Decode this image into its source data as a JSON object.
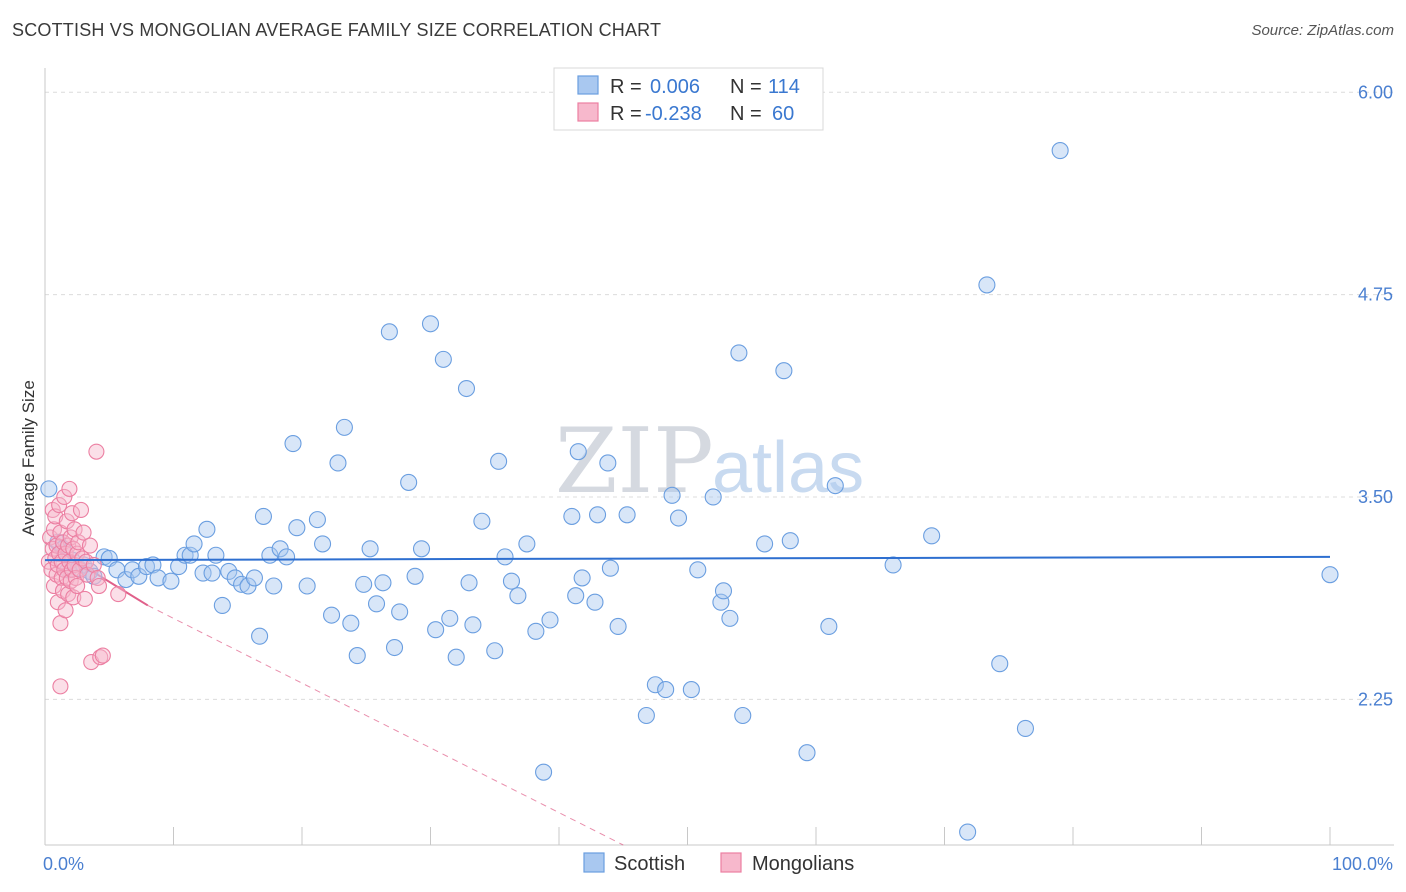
{
  "header": {
    "title": "SCOTTISH VS MONGOLIAN AVERAGE FAMILY SIZE CORRELATION CHART",
    "source": "Source: ZipAtlas.com"
  },
  "watermark": {
    "part1": "ZIP",
    "part2": "atlas"
  },
  "legend_box": {
    "rows": [
      {
        "r_label": "R = ",
        "r_value": "0.006",
        "n_label": "N = ",
        "n_value": "114",
        "color": "#7aaee8"
      },
      {
        "r_label": "R = ",
        "r_value": "-0.238",
        "n_label": "N = ",
        "n_value": "60",
        "color": "#f08fb0"
      }
    ]
  },
  "colors": {
    "scottish_fill": "#a9c8f0",
    "scottish_stroke": "#6a9ee0",
    "scottish_line": "#2e6fd0",
    "mongolian_fill": "#f7b8cc",
    "mongolian_stroke": "#ec7fa2",
    "mongolian_line": "#e0608a",
    "tick_text": "#4a7fd0",
    "grid": "#dcdcdc"
  },
  "chart_data": {
    "type": "scatter",
    "title": "SCOTTISH VS MONGOLIAN AVERAGE FAMILY SIZE CORRELATION CHART",
    "xlabel": "",
    "ylabel": "Average Family Size",
    "xlim": [
      0,
      100
    ],
    "ylim": [
      1.35,
      6.15
    ],
    "x_tick_labels": [
      "0.0%",
      "100.0%"
    ],
    "y_ticks": [
      2.25,
      3.5,
      4.75,
      6.0
    ],
    "y_tick_labels": [
      "2.25",
      "3.50",
      "4.75",
      "6.00"
    ],
    "grid": true,
    "legend_position": "bottom",
    "series": [
      {
        "name": "Scottish",
        "r": 0.006,
        "n": 114,
        "trend": {
          "x0": 0,
          "y0": 3.11,
          "x1": 100,
          "y1": 3.13
        },
        "points": [
          [
            0.3,
            3.55
          ],
          [
            1.0,
            3.22
          ],
          [
            1.4,
            3.18
          ],
          [
            1.8,
            3.05
          ],
          [
            2.1,
            3.11
          ],
          [
            2.6,
            3.06
          ],
          [
            3.0,
            3.08
          ],
          [
            3.5,
            3.04
          ],
          [
            3.8,
            3.01
          ],
          [
            4.6,
            3.13
          ],
          [
            5.0,
            3.12
          ],
          [
            5.6,
            3.05
          ],
          [
            6.3,
            2.99
          ],
          [
            6.8,
            3.05
          ],
          [
            7.3,
            3.01
          ],
          [
            7.9,
            3.07
          ],
          [
            8.4,
            3.08
          ],
          [
            8.8,
            3.0
          ],
          [
            9.8,
            2.98
          ],
          [
            10.4,
            3.07
          ],
          [
            10.9,
            3.14
          ],
          [
            11.3,
            3.14
          ],
          [
            11.6,
            3.21
          ],
          [
            12.3,
            3.03
          ],
          [
            12.6,
            3.3
          ],
          [
            13.0,
            3.03
          ],
          [
            13.3,
            3.14
          ],
          [
            13.8,
            2.83
          ],
          [
            14.3,
            3.04
          ],
          [
            14.8,
            3.0
          ],
          [
            15.3,
            2.96
          ],
          [
            15.8,
            2.95
          ],
          [
            16.3,
            3.0
          ],
          [
            16.7,
            2.64
          ],
          [
            17.0,
            3.38
          ],
          [
            17.5,
            3.14
          ],
          [
            17.8,
            2.95
          ],
          [
            18.3,
            3.18
          ],
          [
            18.8,
            3.13
          ],
          [
            19.3,
            3.83
          ],
          [
            19.6,
            3.31
          ],
          [
            20.4,
            2.95
          ],
          [
            21.2,
            3.36
          ],
          [
            21.6,
            3.21
          ],
          [
            22.3,
            2.77
          ],
          [
            22.8,
            3.71
          ],
          [
            23.3,
            3.93
          ],
          [
            23.8,
            2.72
          ],
          [
            24.3,
            2.52
          ],
          [
            24.8,
            2.96
          ],
          [
            25.3,
            3.18
          ],
          [
            25.8,
            2.84
          ],
          [
            26.3,
            2.97
          ],
          [
            26.8,
            4.52
          ],
          [
            27.2,
            2.57
          ],
          [
            27.6,
            2.79
          ],
          [
            28.3,
            3.59
          ],
          [
            28.8,
            3.01
          ],
          [
            29.3,
            3.18
          ],
          [
            30.0,
            4.57
          ],
          [
            30.4,
            2.68
          ],
          [
            31.0,
            4.35
          ],
          [
            31.5,
            2.75
          ],
          [
            32.0,
            2.51
          ],
          [
            32.8,
            4.17
          ],
          [
            33.0,
            2.97
          ],
          [
            33.3,
            2.71
          ],
          [
            34.0,
            3.35
          ],
          [
            35.0,
            2.55
          ],
          [
            35.3,
            3.72
          ],
          [
            35.8,
            3.13
          ],
          [
            36.3,
            2.98
          ],
          [
            36.8,
            2.89
          ],
          [
            37.5,
            3.21
          ],
          [
            38.2,
            2.67
          ],
          [
            38.8,
            1.8
          ],
          [
            39.3,
            2.74
          ],
          [
            41.0,
            3.38
          ],
          [
            41.5,
            3.78
          ],
          [
            41.8,
            3.0
          ],
          [
            41.3,
            2.89
          ],
          [
            42.8,
            2.85
          ],
          [
            43.0,
            3.39
          ],
          [
            43.8,
            3.71
          ],
          [
            44.0,
            3.06
          ],
          [
            44.6,
            2.7
          ],
          [
            45.3,
            3.39
          ],
          [
            46.8,
            2.15
          ],
          [
            47.5,
            2.34
          ],
          [
            48.3,
            2.31
          ],
          [
            48.8,
            3.51
          ],
          [
            49.3,
            3.37
          ],
          [
            50.3,
            2.31
          ],
          [
            50.8,
            3.05
          ],
          [
            52.0,
            3.5
          ],
          [
            52.6,
            2.85
          ],
          [
            52.8,
            2.92
          ],
          [
            53.3,
            2.75
          ],
          [
            54.0,
            4.39
          ],
          [
            54.3,
            2.15
          ],
          [
            56.0,
            3.21
          ],
          [
            57.5,
            4.28
          ],
          [
            58.0,
            3.23
          ],
          [
            59.3,
            1.92
          ],
          [
            61.0,
            2.7
          ],
          [
            61.5,
            3.57
          ],
          [
            66.0,
            3.08
          ],
          [
            69.0,
            3.26
          ],
          [
            71.8,
            1.43
          ],
          [
            73.3,
            4.81
          ],
          [
            74.3,
            2.47
          ],
          [
            76.3,
            2.07
          ],
          [
            79.0,
            5.64
          ],
          [
            100.0,
            3.02
          ]
        ]
      },
      {
        "name": "Mongolians",
        "r": -0.238,
        "n": 60,
        "trend": {
          "x0": 0,
          "y0": 3.22,
          "x1": 8,
          "y1": 2.83,
          "dash_x1": 45,
          "dash_y1": 1.35
        },
        "points": [
          [
            0.3,
            3.1
          ],
          [
            0.4,
            3.25
          ],
          [
            0.5,
            3.05
          ],
          [
            0.6,
            3.42
          ],
          [
            0.6,
            3.18
          ],
          [
            0.7,
            2.95
          ],
          [
            0.7,
            3.3
          ],
          [
            0.8,
            3.12
          ],
          [
            0.8,
            3.38
          ],
          [
            0.9,
            3.02
          ],
          [
            0.9,
            3.2
          ],
          [
            1.0,
            3.08
          ],
          [
            1.0,
            2.85
          ],
          [
            1.1,
            3.15
          ],
          [
            1.1,
            3.45
          ],
          [
            1.2,
            2.72
          ],
          [
            1.2,
            3.28
          ],
          [
            1.3,
            3.0
          ],
          [
            1.3,
            3.1
          ],
          [
            1.4,
            2.92
          ],
          [
            1.4,
            3.22
          ],
          [
            1.5,
            3.05
          ],
          [
            1.5,
            3.5
          ],
          [
            1.6,
            2.8
          ],
          [
            1.6,
            3.15
          ],
          [
            1.7,
            3.35
          ],
          [
            1.7,
            3.0
          ],
          [
            1.8,
            2.9
          ],
          [
            1.8,
            3.2
          ],
          [
            1.9,
            3.1
          ],
          [
            1.9,
            3.55
          ],
          [
            2.0,
            2.98
          ],
          [
            2.0,
            3.25
          ],
          [
            2.1,
            3.05
          ],
          [
            2.1,
            3.4
          ],
          [
            2.2,
            3.18
          ],
          [
            2.2,
            2.88
          ],
          [
            2.3,
            3.08
          ],
          [
            2.3,
            3.3
          ],
          [
            2.4,
            3.0
          ],
          [
            2.5,
            3.15
          ],
          [
            2.5,
            2.95
          ],
          [
            2.6,
            3.22
          ],
          [
            2.7,
            3.05
          ],
          [
            2.8,
            3.42
          ],
          [
            2.9,
            3.12
          ],
          [
            3.0,
            3.28
          ],
          [
            3.1,
            2.87
          ],
          [
            3.2,
            3.1
          ],
          [
            3.3,
            3.02
          ],
          [
            3.5,
            3.2
          ],
          [
            3.6,
            2.48
          ],
          [
            3.8,
            3.08
          ],
          [
            4.0,
            3.78
          ],
          [
            4.1,
            3.0
          ],
          [
            4.2,
            2.95
          ],
          [
            4.3,
            2.51
          ],
          [
            4.5,
            2.52
          ],
          [
            5.7,
            2.9
          ],
          [
            1.2,
            2.33
          ]
        ]
      }
    ]
  }
}
